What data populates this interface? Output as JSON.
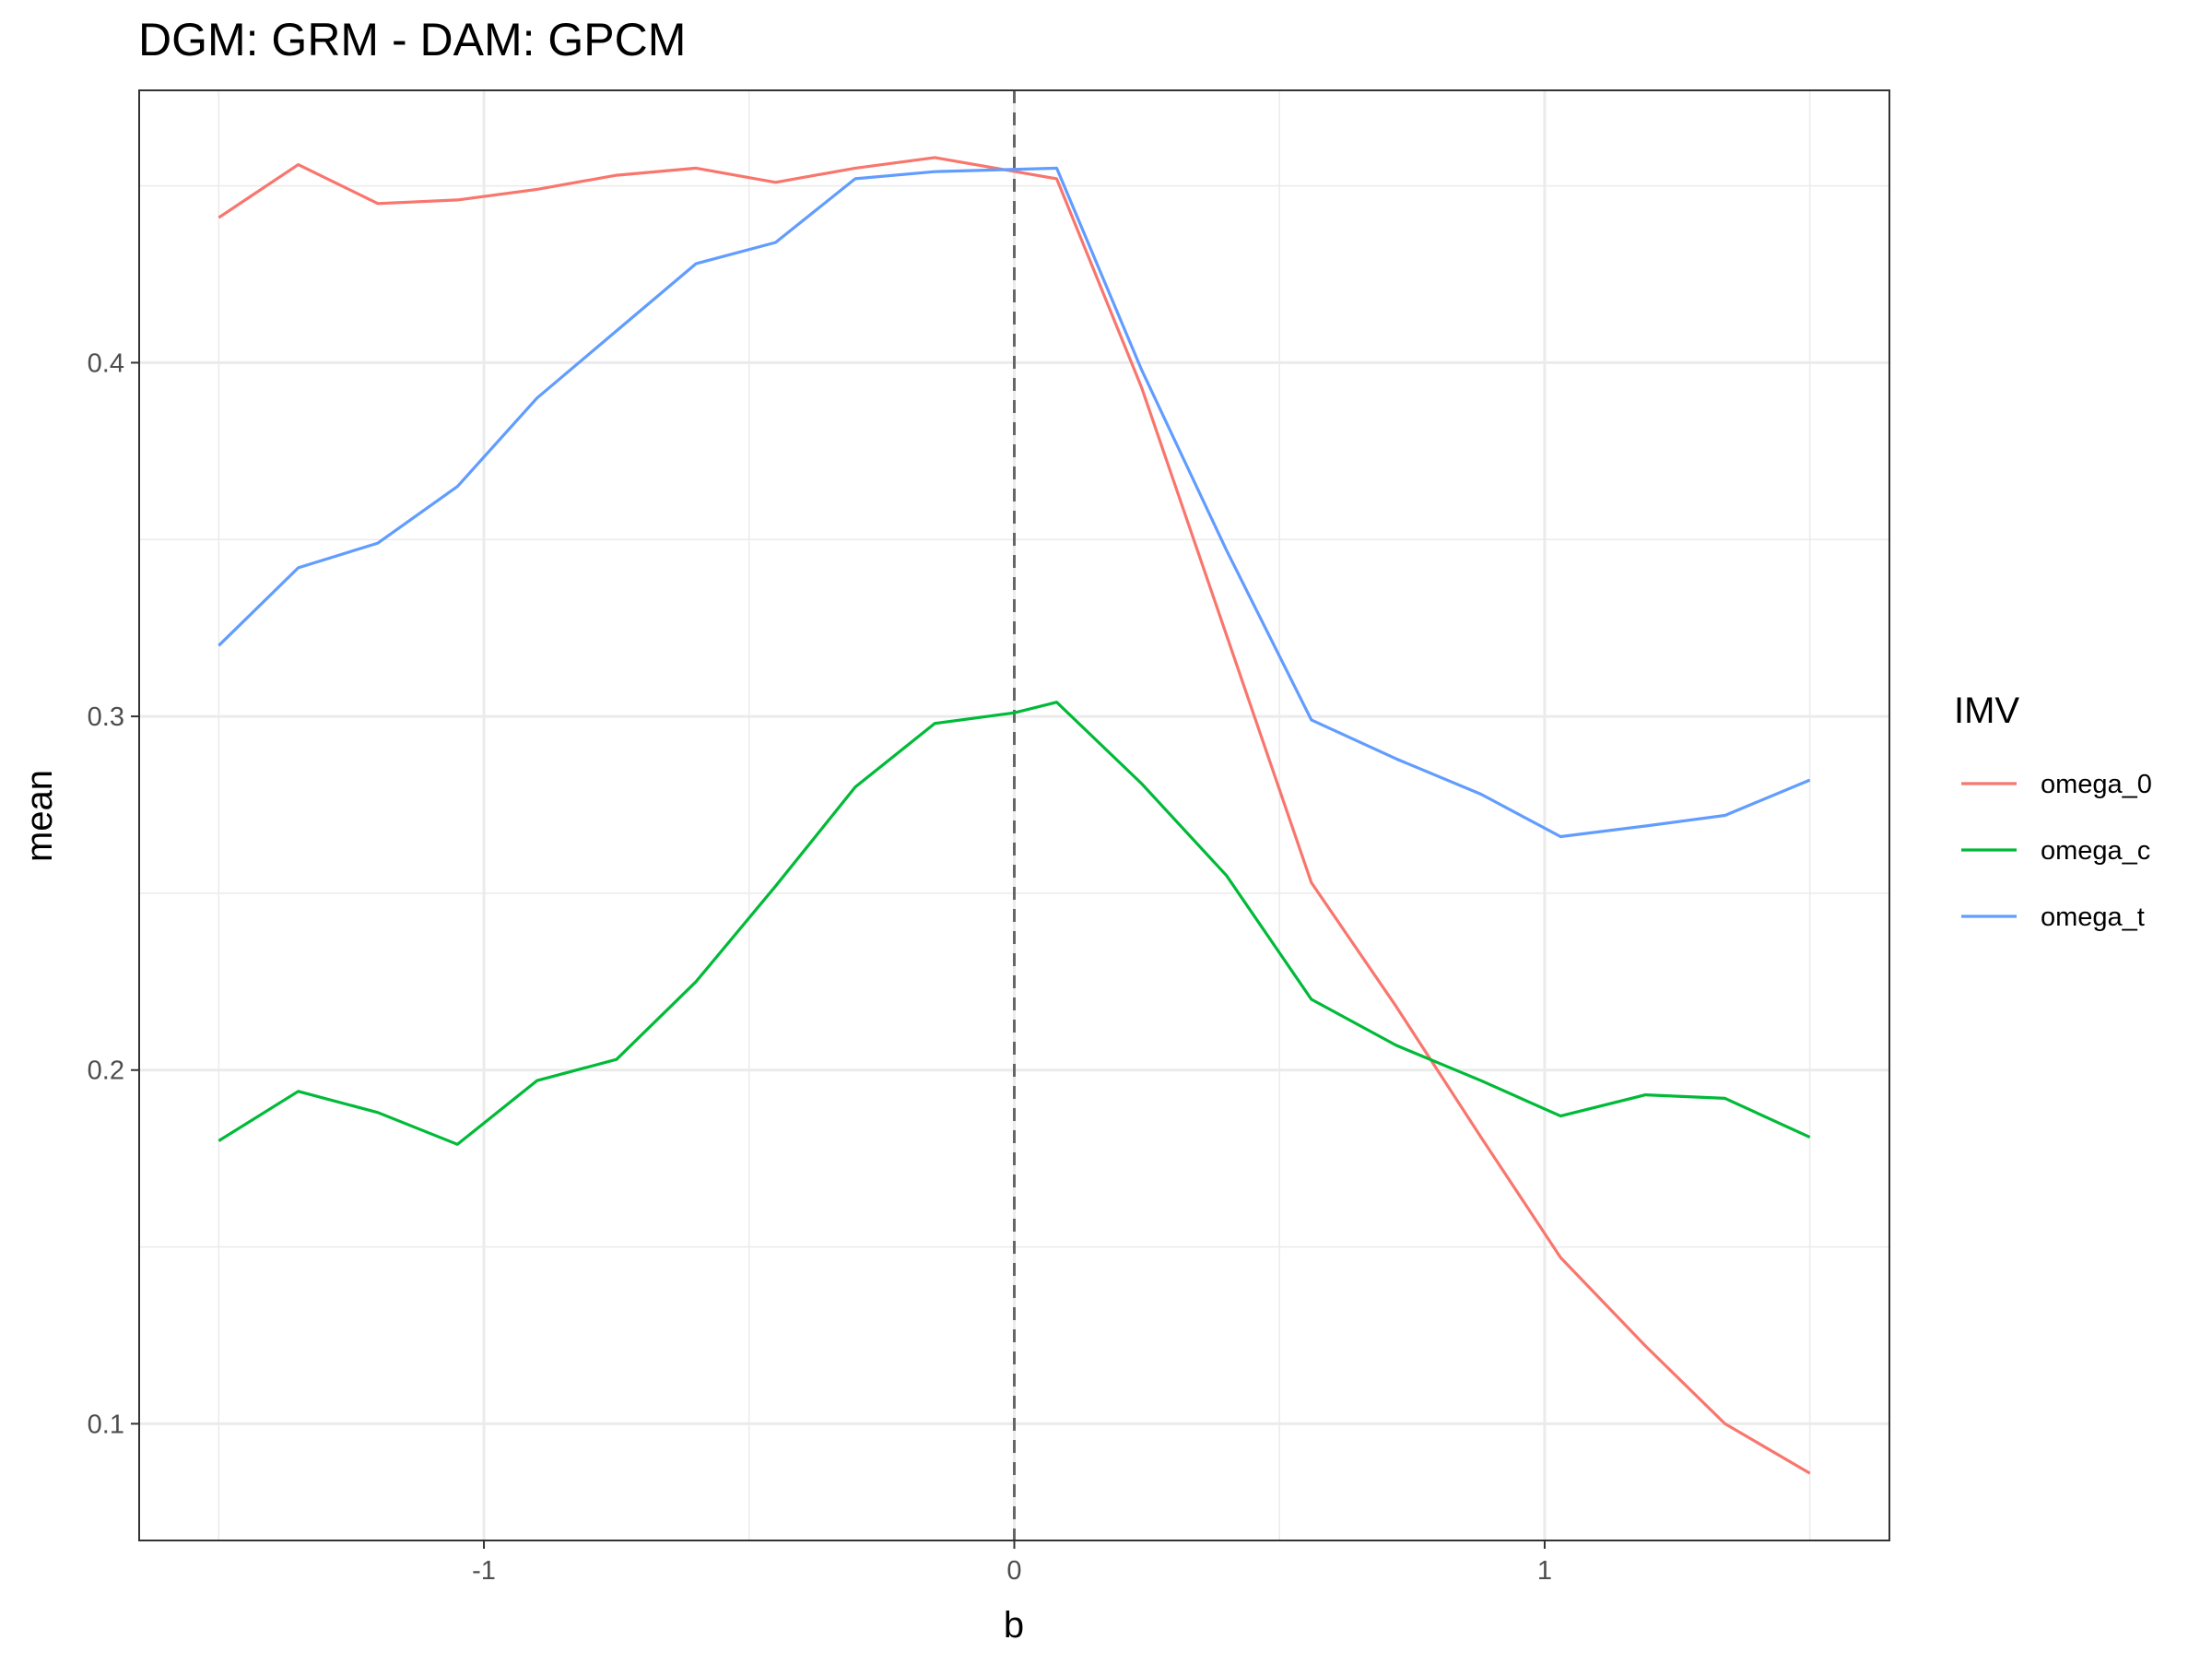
{
  "chart_data": {
    "type": "line",
    "title": "DGM: GRM - DAM: GPCM",
    "xlabel": "b",
    "ylabel": "mean",
    "xlim": [
      -1.65,
      1.65
    ],
    "ylim": [
      0.067,
      0.477
    ],
    "x_ticks": [
      {
        "value": -1,
        "label": "-1"
      },
      {
        "value": 0,
        "label": "0"
      },
      {
        "value": 1,
        "label": "1"
      }
    ],
    "y_ticks": [
      {
        "value": 0.1,
        "label": "0.1"
      },
      {
        "value": 0.2,
        "label": "0.2"
      },
      {
        "value": 0.3,
        "label": "0.3"
      },
      {
        "value": 0.4,
        "label": "0.4"
      }
    ],
    "grid": true,
    "reference_line": {
      "axis": "x",
      "value": 0,
      "style": "dashed",
      "color": "#666666"
    },
    "legend": {
      "title": "IMV",
      "position": "right"
    },
    "x": [
      -1.5,
      -1.35,
      -1.2,
      -1.05,
      -0.9,
      -0.75,
      -0.6,
      -0.45,
      -0.3,
      -0.15,
      0.0,
      0.08,
      0.24,
      0.4,
      0.56,
      0.72,
      0.88,
      1.03,
      1.19,
      1.34,
      1.5
    ],
    "series": [
      {
        "name": "omega_0",
        "color": "#F8766D",
        "x": [
          -1.5,
          -1.35,
          -1.2,
          -1.05,
          -0.9,
          -0.75,
          -0.6,
          -0.45,
          -0.3,
          -0.15,
          0.08,
          0.24,
          0.4,
          0.56,
          0.72,
          0.88,
          1.03,
          1.19,
          1.34,
          1.5
        ],
        "values": [
          0.441,
          0.456,
          0.445,
          0.446,
          0.449,
          0.453,
          0.455,
          0.451,
          0.455,
          0.458,
          0.452,
          0.393,
          0.323,
          0.253,
          0.218,
          0.181,
          0.147,
          0.122,
          0.1,
          0.086
        ]
      },
      {
        "name": "omega_c",
        "color": "#00BA38",
        "x": [
          -1.5,
          -1.35,
          -1.2,
          -1.05,
          -0.9,
          -0.75,
          -0.6,
          -0.45,
          -0.3,
          -0.15,
          0.0,
          0.08,
          0.24,
          0.4,
          0.56,
          0.72,
          0.88,
          1.03,
          1.19,
          1.34,
          1.5
        ],
        "values": [
          0.18,
          0.194,
          0.188,
          0.179,
          0.197,
          0.203,
          0.225,
          0.252,
          0.28,
          0.298,
          0.301,
          0.304,
          0.281,
          0.255,
          0.22,
          0.207,
          0.197,
          0.187,
          0.193,
          0.192,
          0.181
        ]
      },
      {
        "name": "omega_t",
        "color": "#619CFF",
        "x": [
          -1.5,
          -1.35,
          -1.2,
          -1.05,
          -0.9,
          -0.75,
          -0.6,
          -0.45,
          -0.3,
          -0.15,
          0.08,
          0.24,
          0.4,
          0.56,
          0.72,
          0.88,
          1.03,
          1.19,
          1.34,
          1.5
        ],
        "values": [
          0.32,
          0.342,
          0.349,
          0.365,
          0.39,
          0.409,
          0.428,
          0.434,
          0.452,
          0.454,
          0.455,
          0.398,
          0.347,
          0.299,
          0.288,
          0.278,
          0.266,
          0.269,
          0.272,
          0.282
        ]
      }
    ]
  }
}
